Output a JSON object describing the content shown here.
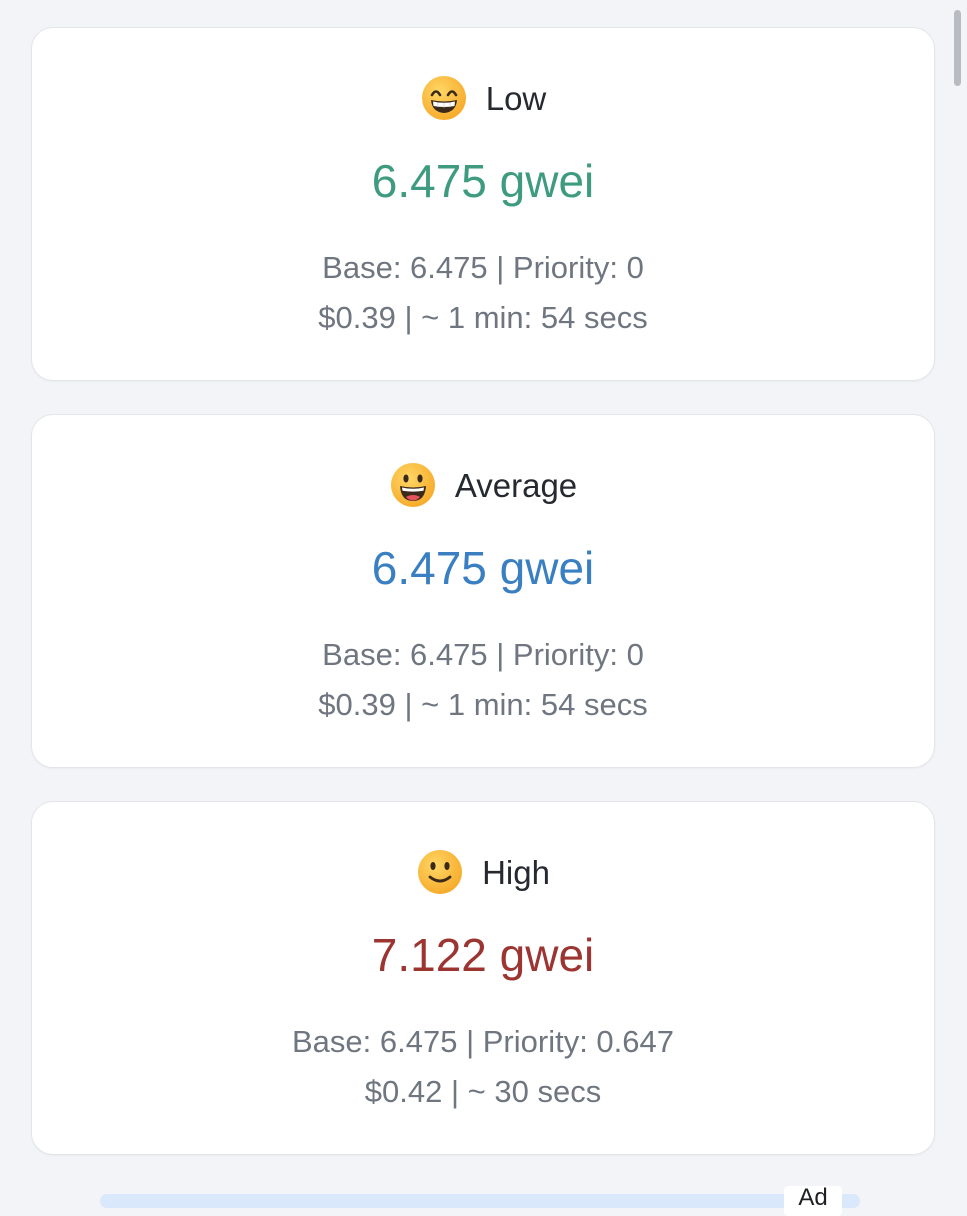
{
  "cards": [
    {
      "level": "Low",
      "emoji_icon": "grinning-face-with-big-eyes-icon",
      "price": "6.475 gwei",
      "price_color": "#3e9b7f",
      "detail_line1": "Base: 6.475 | Priority: 0",
      "detail_line2": "$0.39 | ~ 1 min: 54 secs"
    },
    {
      "level": "Average",
      "emoji_icon": "grinning-face-icon",
      "price": "6.475 gwei",
      "price_color": "#3a7fc2",
      "detail_line1": "Base: 6.475 | Priority: 0",
      "detail_line2": "$0.39 | ~ 1 min: 54 secs"
    },
    {
      "level": "High",
      "emoji_icon": "slightly-smiling-face-icon",
      "price": "7.122 gwei",
      "price_color": "#9c3432",
      "detail_line1": "Base: 6.475 | Priority: 0.647",
      "detail_line2": "$0.42 | ~ 30 secs"
    }
  ],
  "ad": {
    "label": "Ad"
  }
}
